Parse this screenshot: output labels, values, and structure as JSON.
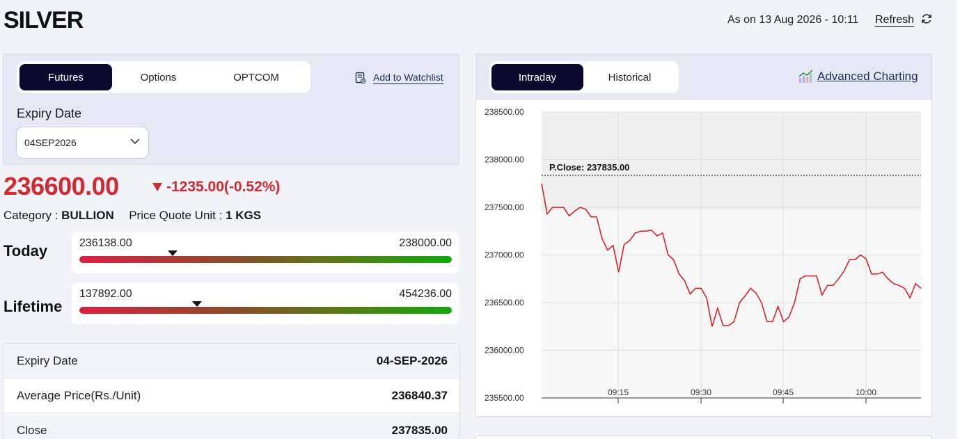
{
  "header": {
    "title": "SILVER",
    "as_on": "As on 13 Aug 2026 - 10:11",
    "refresh_label": "Refresh"
  },
  "instrument_tabs": [
    {
      "label": "Futures",
      "active": true
    },
    {
      "label": "Options",
      "active": false
    },
    {
      "label": "OPTCOM",
      "active": false
    }
  ],
  "watchlist_label": "Add to Watchlist",
  "expiry": {
    "label": "Expiry Date",
    "selected": "04SEP2026"
  },
  "quote": {
    "price": "236600.00",
    "change": "-1235.00(-0.52%)",
    "category_label": "Category :",
    "category_value": "BULLION",
    "unit_label": "Price Quote Unit :",
    "unit_value": "1 KGS"
  },
  "ranges": {
    "today": {
      "label": "Today",
      "low": "236138.00",
      "high": "238000.00",
      "position": 0.25
    },
    "lifetime": {
      "label": "Lifetime",
      "low": "137892.00",
      "high": "454236.00",
      "position": 0.315
    }
  },
  "details": [
    {
      "key": "Expiry Date",
      "value": "04-SEP-2026"
    },
    {
      "key": "Average Price(Rs./Unit)",
      "value": "236840.37"
    },
    {
      "key": "Close",
      "value": "237835.00"
    }
  ],
  "chart_tabs": [
    {
      "label": "Intraday",
      "active": true
    },
    {
      "label": "Historical",
      "active": false
    }
  ],
  "advanced_charting_label": "Advanced Charting",
  "colors": {
    "accent_dark": "#0b0a2e",
    "negative": "#d22a2f",
    "line": "#e0141e"
  },
  "chart_data": {
    "type": "line",
    "title": "",
    "xlabel": "",
    "ylabel": "",
    "ylim": [
      235500,
      238500
    ],
    "yticks": [
      "238500.00",
      "238000.00",
      "237500.00",
      "237000.00",
      "236500.00",
      "236000.00",
      "235500.00"
    ],
    "xticks": [
      "09:15",
      "09:30",
      "09:45",
      "10:00"
    ],
    "reference_line": {
      "label": "P.Close: 237835.00",
      "value": 237835
    },
    "grid": true,
    "series": [
      {
        "values": [
          237750,
          237430,
          237500,
          237500,
          237500,
          237410,
          237460,
          237500,
          237480,
          237400,
          237400,
          237170,
          237050,
          237100,
          236820,
          237110,
          237150,
          237230,
          237250,
          237250,
          237260,
          237200,
          237230,
          237000,
          236950,
          236800,
          236730,
          236590,
          236650,
          236650,
          236550,
          236250,
          236440,
          236260,
          236260,
          236300,
          236500,
          236570,
          236650,
          236600,
          236500,
          236300,
          236300,
          236460,
          236300,
          236350,
          236500,
          236750,
          236780,
          236780,
          236780,
          236580,
          236680,
          236680,
          236750,
          236830,
          236950,
          236950,
          237000,
          236960,
          236800,
          236800,
          236820,
          236750,
          236700,
          236680,
          236650,
          236550,
          236700,
          236650
        ]
      }
    ]
  }
}
